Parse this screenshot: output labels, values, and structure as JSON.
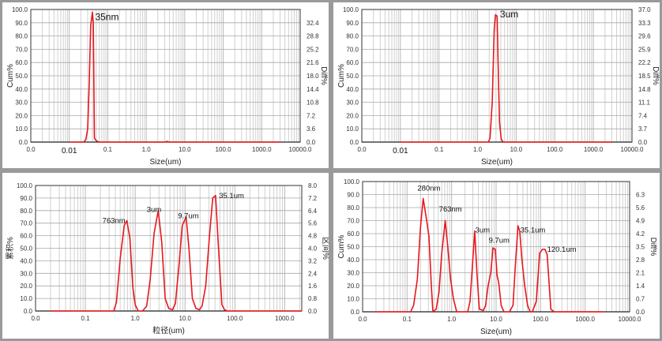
{
  "chart_data": [
    {
      "type": "line",
      "title": "",
      "xlabel": "Size(um)",
      "ylabel": "Cum%",
      "y2label": "Diff%",
      "xscale": "log",
      "xlim": [
        0.001,
        10000
      ],
      "xticks": [
        "0.0",
        "0.1",
        "1.0",
        "10.0",
        "100.0",
        "1000.0",
        "10000.0"
      ],
      "xtick_values": [
        0.001,
        0.1,
        1,
        10,
        100,
        1000,
        10000
      ],
      "extra_xlabel": {
        "text": "0.01",
        "x": 0.01
      },
      "ylim": [
        0,
        100
      ],
      "yticks": [
        "0.0",
        "10.0",
        "20.0",
        "30.0",
        "40.0",
        "50.0",
        "60.0",
        "70.0",
        "80.0",
        "90.0",
        "100.0"
      ],
      "y2ticks": [
        "0.0",
        "3.6",
        "7.2",
        "10.8",
        "14.4",
        "18.0",
        "21.6",
        "25.2",
        "28.8",
        "32.4"
      ],
      "grid": true,
      "color": "#e8161b",
      "series": [
        {
          "name": "distribution",
          "x": [
            0.01,
            0.024,
            0.027,
            0.03,
            0.033,
            0.036,
            0.04,
            0.042,
            0.045,
            0.05,
            0.06,
            0.1,
            1,
            3,
            3.5,
            4,
            10,
            100,
            3000
          ],
          "y": [
            0,
            0,
            2,
            10,
            45,
            88,
            98,
            90,
            3,
            1,
            0,
            0,
            0,
            0,
            0.5,
            0,
            0,
            0,
            0
          ]
        }
      ],
      "annotations": [
        {
          "text": "35nm",
          "x": 0.047,
          "y": 92
        }
      ]
    },
    {
      "type": "line",
      "title": "",
      "xlabel": "Size(um)",
      "ylabel": "Cum%",
      "y2label": "Diff%",
      "xscale": "log",
      "xlim": [
        0.001,
        10000
      ],
      "xticks": [
        "0.0",
        "0.1",
        "1.0",
        "10.0",
        "100.0",
        "1000.0",
        "10000.0"
      ],
      "xtick_values": [
        0.001,
        0.1,
        1,
        10,
        100,
        1000,
        10000
      ],
      "extra_xlabel": {
        "text": "0.01",
        "x": 0.01
      },
      "ylim": [
        0,
        100
      ],
      "yticks": [
        "0.0",
        "10.0",
        "20.0",
        "30.0",
        "40.0",
        "50.0",
        "60.0",
        "70.0",
        "80.0",
        "90.0",
        "100.0"
      ],
      "y2ticks": [
        "0.0",
        "3.7",
        "7.4",
        "11.1",
        "14.8",
        "18.5",
        "22.2",
        "25.9",
        "29.6",
        "33.3",
        "37.0"
      ],
      "grid": true,
      "color": "#e8161b",
      "series": [
        {
          "name": "distribution",
          "x": [
            0.01,
            1.9,
            2.1,
            2.4,
            2.7,
            2.9,
            3.2,
            3.4,
            3.7,
            4.1,
            4.6,
            3000
          ],
          "y": [
            0,
            0,
            3,
            30,
            85,
            96,
            95,
            60,
            15,
            2,
            0,
            0
          ]
        }
      ],
      "annotations": [
        {
          "text": "3um",
          "x": 3.8,
          "y": 94
        }
      ]
    },
    {
      "type": "line",
      "title": "",
      "xlabel": "粒径(um)",
      "ylabel": "累积%",
      "y2label": "区间%",
      "xscale": "log",
      "xlim": [
        0.01,
        2200
      ],
      "xticks": [
        "0.0",
        "0.1",
        "1.0",
        "10.0",
        "100.0",
        "1000.0"
      ],
      "xtick_values": [
        0.01,
        0.1,
        1,
        10,
        100,
        1000
      ],
      "ylim": [
        0,
        100
      ],
      "yticks": [
        "0.0",
        "10.0",
        "20.0",
        "30.0",
        "40.0",
        "50.0",
        "60.0",
        "70.0",
        "80.0",
        "90.0",
        "100.0"
      ],
      "y2ticks": [
        "0.0",
        "0.8",
        "1.6",
        "2.4",
        "3.2",
        "4.0",
        "4.8",
        "5.6",
        "6.4",
        "7.2",
        "8.0"
      ],
      "grid": true,
      "color": "#e8161b",
      "series": [
        {
          "name": "distribution",
          "x": [
            0.02,
            0.37,
            0.42,
            0.5,
            0.6,
            0.68,
            0.78,
            0.9,
            1.0,
            1.15,
            1.4,
            1.7,
            2.0,
            2.4,
            2.9,
            3.4,
            4.0,
            4.7,
            5.6,
            6.4,
            7.5,
            8.8,
            10.5,
            12,
            14,
            16.5,
            19.5,
            22,
            26,
            31,
            36,
            41,
            47,
            55,
            62,
            70,
            2200
          ],
          "y": [
            0,
            0,
            7,
            42,
            68,
            72,
            58,
            18,
            5,
            0,
            0,
            4,
            25,
            62,
            80,
            55,
            10,
            2,
            1,
            6,
            35,
            68,
            75,
            50,
            10,
            2,
            1,
            4,
            20,
            60,
            90,
            92,
            50,
            5,
            1,
            0,
            0
          ]
        }
      ],
      "annotations": [
        {
          "text": "763nm",
          "x": 0.22,
          "y": 70
        },
        {
          "text": "3um",
          "x": 1.7,
          "y": 79
        },
        {
          "text": "9.7um",
          "x": 7.2,
          "y": 74
        },
        {
          "text": "35.1um",
          "x": 48,
          "y": 90
        }
      ]
    },
    {
      "type": "line",
      "title": "",
      "xlabel": "Size(um)",
      "ylabel": "Cum%",
      "y2label": "Diff%",
      "xscale": "log",
      "xlim": [
        0.01,
        10000
      ],
      "xticks": [
        "0.0",
        "0.1",
        "1.0",
        "10.0",
        "100.0",
        "1000.0",
        "10000.0"
      ],
      "xtick_values": [
        0.01,
        0.1,
        1,
        10,
        100,
        1000,
        10000
      ],
      "ylim": [
        0,
        100
      ],
      "yticks": [
        "0.0",
        "10.0",
        "20.0",
        "30.0",
        "40.0",
        "50.0",
        "60.0",
        "70.0",
        "80.0",
        "90.0",
        "100.0"
      ],
      "y2ticks": [
        "0.0",
        "0.7",
        "1.4",
        "2.1",
        "2.8",
        "3.5",
        "4.2",
        "4.9",
        "5.6",
        "6.3"
      ],
      "grid": true,
      "color": "#e8161b",
      "series": [
        {
          "name": "distribution",
          "x": [
            0.02,
            0.12,
            0.14,
            0.17,
            0.2,
            0.23,
            0.27,
            0.31,
            0.35,
            0.38,
            0.45,
            0.52,
            0.6,
            0.72,
            0.82,
            0.95,
            1.1,
            1.3,
            2.3,
            2.6,
            3.0,
            3.3,
            3.7,
            4.2,
            5.2,
            5.8,
            6.6,
            7.6,
            8.5,
            9.6,
            10.5,
            11.5,
            13,
            15,
            17,
            20,
            24,
            27,
            31,
            34,
            38,
            44,
            51,
            58,
            65,
            80,
            95,
            110,
            125,
            140,
            170,
            200,
            2600
          ],
          "y": [
            0,
            0,
            5,
            25,
            65,
            87,
            72,
            58,
            20,
            0,
            2,
            15,
            45,
            70,
            50,
            25,
            10,
            0,
            0,
            8,
            40,
            62,
            30,
            2,
            1,
            5,
            20,
            30,
            49,
            48,
            28,
            22,
            5,
            0,
            0,
            0,
            5,
            35,
            66,
            62,
            40,
            20,
            5,
            0,
            0,
            8,
            45,
            48,
            48,
            44,
            2,
            0,
            0
          ]
        }
      ],
      "annotations": [
        {
          "text": "280nm",
          "x": 0.17,
          "y": 93
        },
        {
          "text": "763nm",
          "x": 0.52,
          "y": 77
        },
        {
          "text": "3um",
          "x": 3.4,
          "y": 61
        },
        {
          "text": "9.7um",
          "x": 6.8,
          "y": 53
        },
        {
          "text": "35.1um",
          "x": 35,
          "y": 61
        },
        {
          "text": "120.1um",
          "x": 140,
          "y": 46
        }
      ]
    }
  ]
}
